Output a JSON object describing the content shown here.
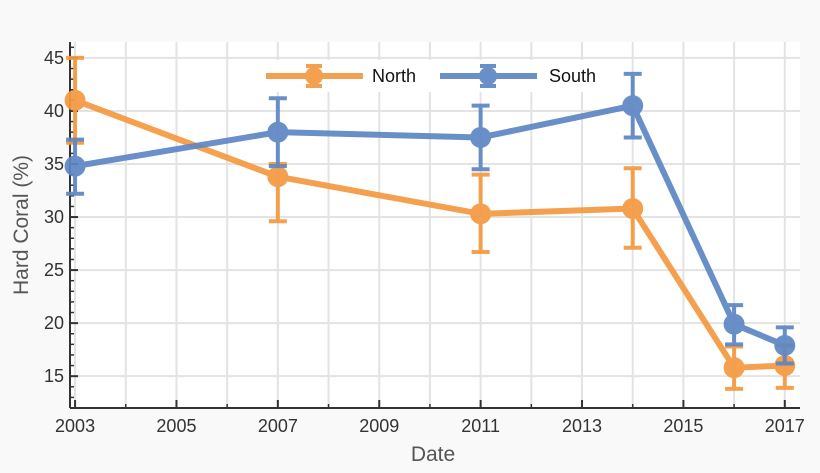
{
  "chart_data": {
    "type": "line",
    "title": "",
    "xlabel": "Date",
    "ylabel": "Hard Coral (%)",
    "xlim": [
      2002.9,
      2017.3
    ],
    "ylim": [
      12,
      46.5
    ],
    "xticks": [
      2003,
      2005,
      2007,
      2009,
      2011,
      2013,
      2015,
      2017
    ],
    "xtick_labels": [
      "2003",
      "2005",
      "2007",
      "2009",
      "2011",
      "2013",
      "2015",
      "2017"
    ],
    "yticks": [
      15,
      20,
      25,
      30,
      35,
      40,
      45
    ],
    "ytick_labels": [
      "15",
      "20",
      "25",
      "30",
      "35",
      "40",
      "45"
    ],
    "grid": true,
    "legend_position": "top-center",
    "series": [
      {
        "name": "North",
        "color": "#f5993f",
        "x": [
          2003,
          2007,
          2011,
          2014,
          2016,
          2017
        ],
        "y": [
          41.0,
          33.8,
          30.3,
          30.8,
          15.8,
          16.0
        ],
        "err_low": [
          37.0,
          29.6,
          26.7,
          27.1,
          13.8,
          13.9
        ],
        "err_high": [
          45.0,
          35.0,
          34.0,
          34.6,
          17.8,
          17.9
        ]
      },
      {
        "name": "South",
        "color": "#5d86c5",
        "x": [
          2003,
          2007,
          2011,
          2014,
          2016,
          2017
        ],
        "y": [
          34.8,
          38.0,
          37.5,
          40.5,
          19.9,
          17.9
        ],
        "err_low": [
          32.2,
          34.8,
          34.5,
          37.5,
          18.0,
          16.2
        ],
        "err_high": [
          37.3,
          41.2,
          40.5,
          43.5,
          21.7,
          19.6
        ]
      }
    ]
  }
}
